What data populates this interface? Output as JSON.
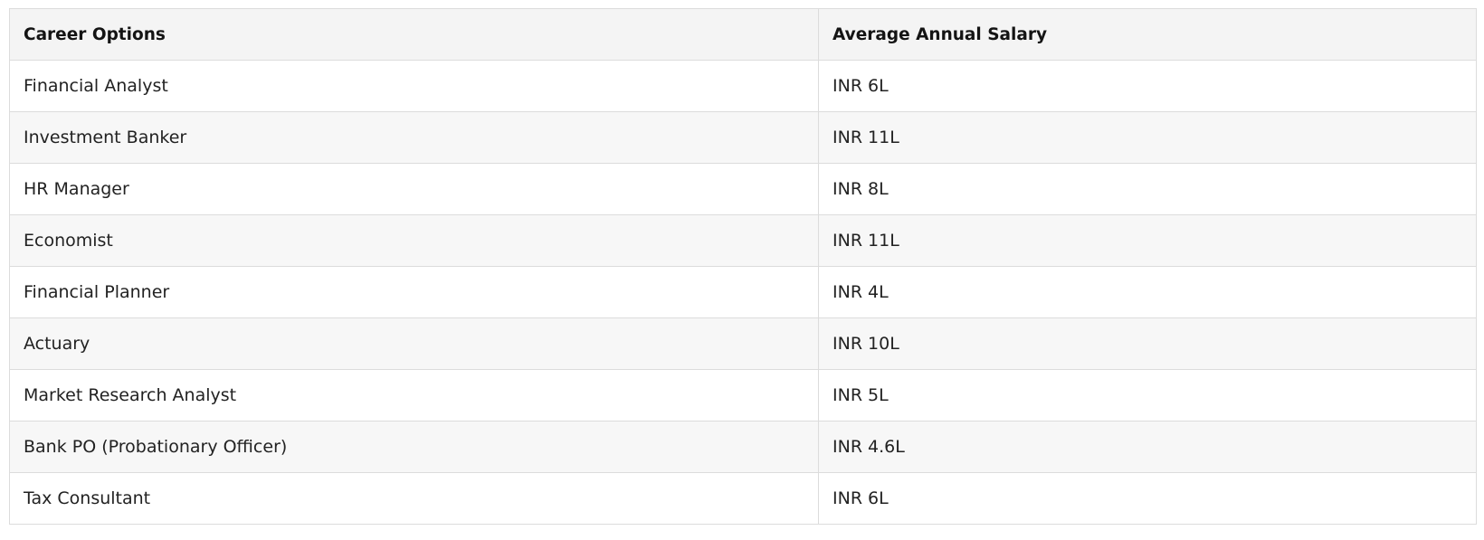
{
  "table": {
    "headers": [
      "Career Options",
      "Average Annual Salary"
    ],
    "rows": [
      [
        "Financial Analyst",
        "INR 6L"
      ],
      [
        "Investment Banker",
        "INR 11L"
      ],
      [
        "HR Manager",
        "INR 8L"
      ],
      [
        "Economist",
        "INR 11L"
      ],
      [
        "Financial Planner",
        "INR 4L"
      ],
      [
        "Actuary",
        "INR 10L"
      ],
      [
        "Market Research Analyst",
        "INR 5L"
      ],
      [
        "Bank PO (Probationary Officer)",
        "INR 4.6L"
      ],
      [
        "Tax Consultant",
        "INR 6L"
      ]
    ]
  }
}
